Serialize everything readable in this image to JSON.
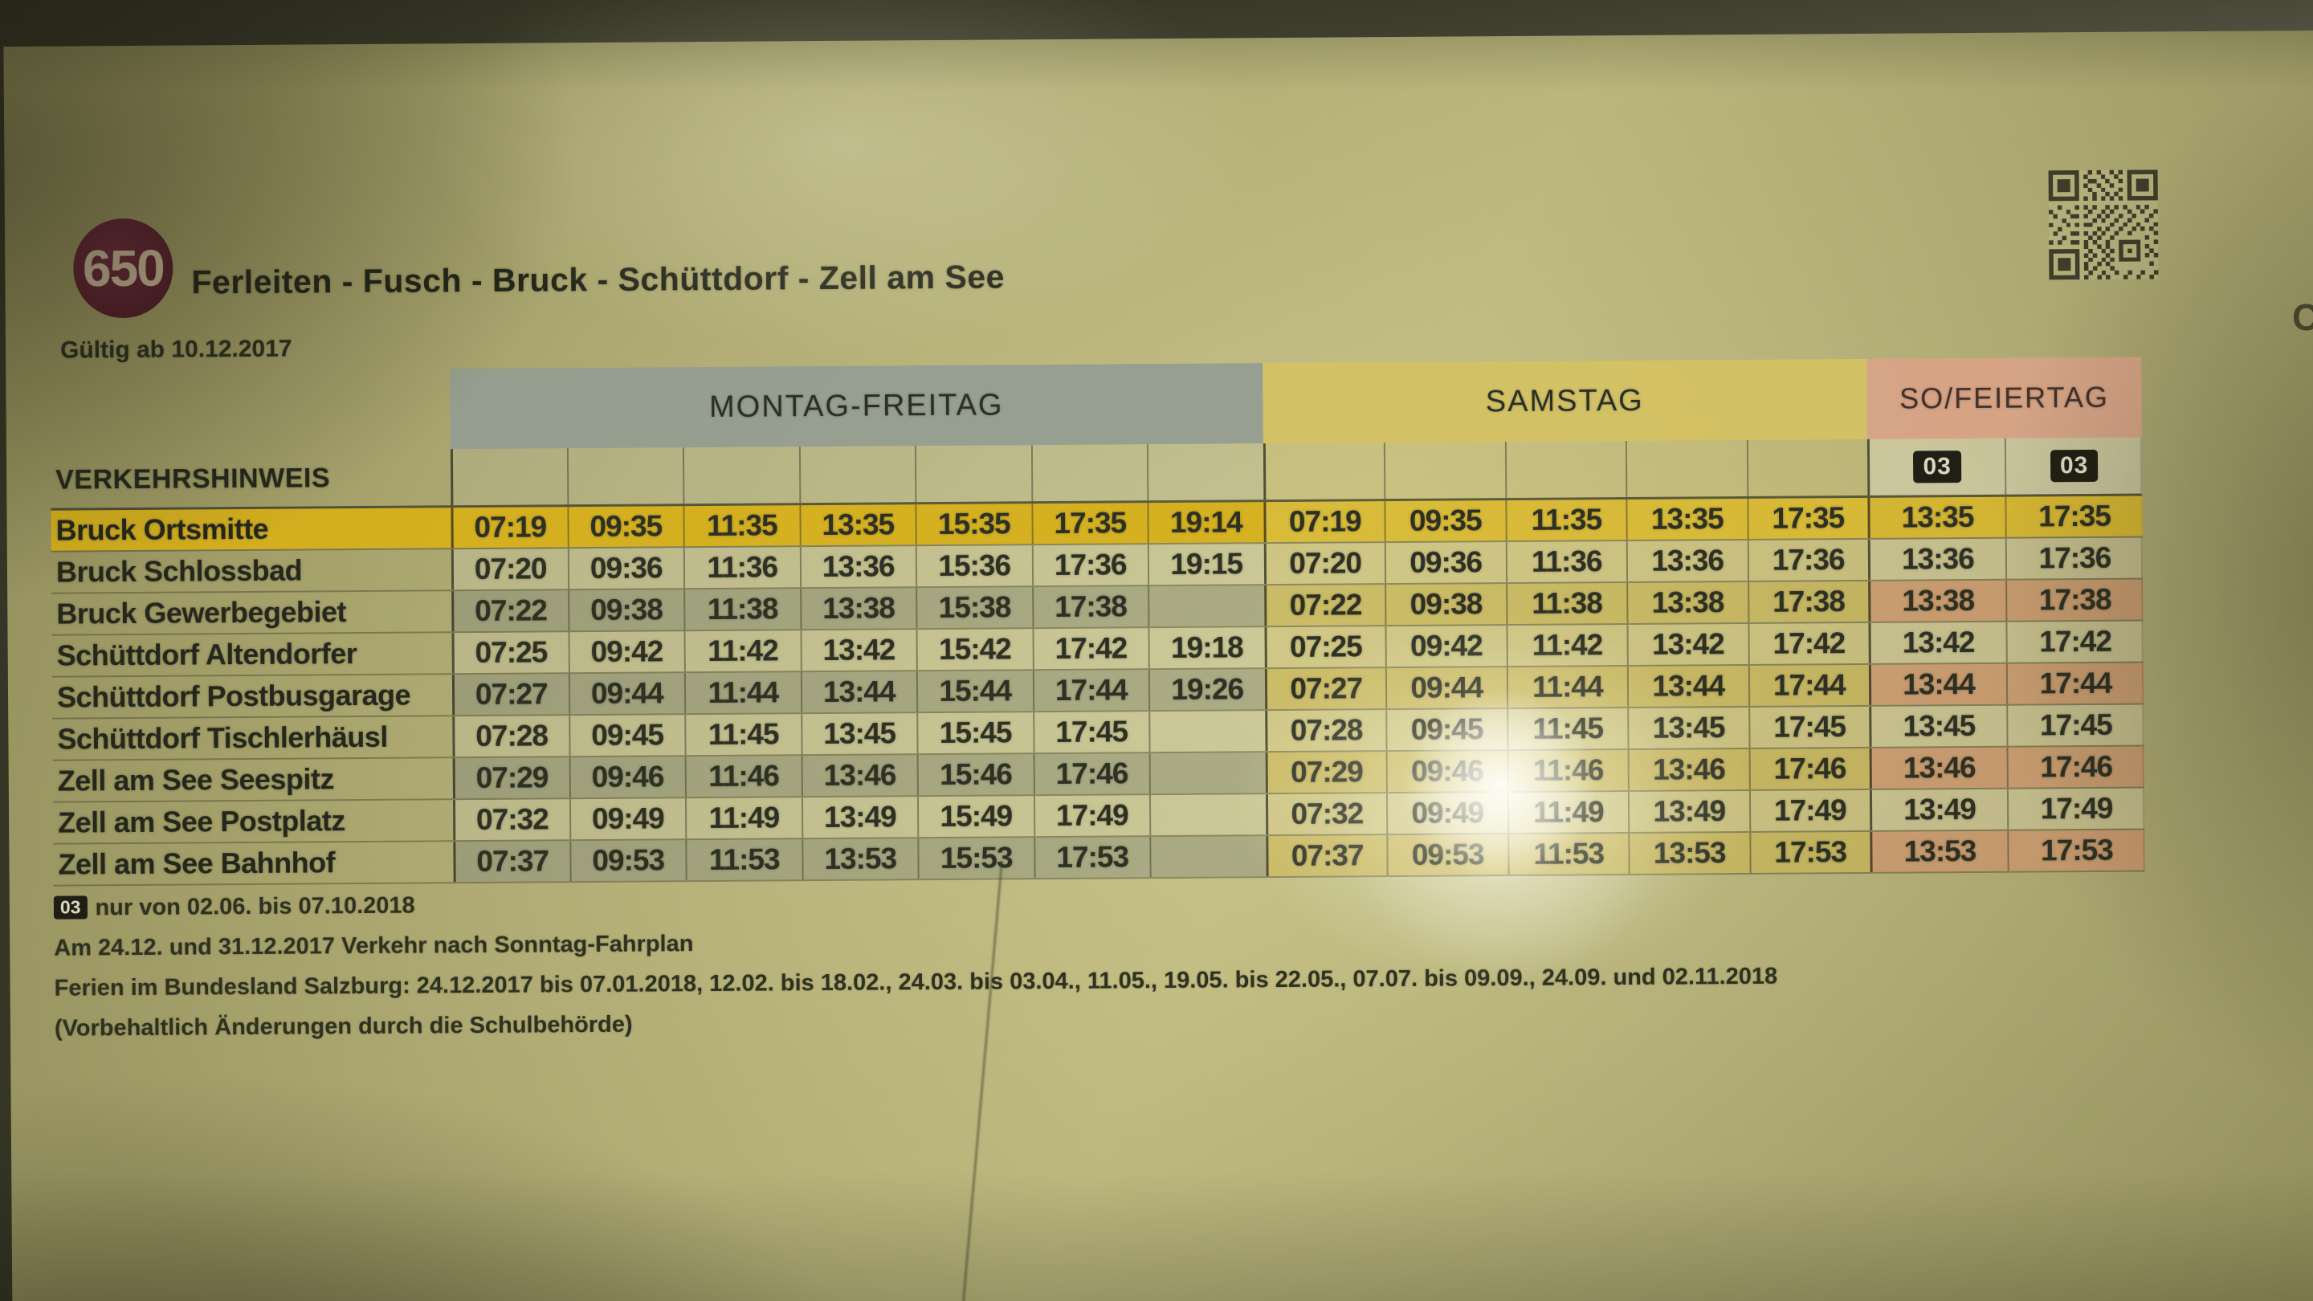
{
  "route": {
    "number": "650",
    "title": "Ferleiten - Fusch - Bruck - Schüttdorf - Zell am See",
    "valid_from": "Gültig ab 10.12.2017"
  },
  "header": {
    "day_groups": [
      {
        "label": "MONTAG-FREITAG",
        "columns": 7
      },
      {
        "label": "SAMSTAG",
        "columns": 5
      },
      {
        "label": "SO/FEIERTAG",
        "columns": 2
      }
    ],
    "note_row_label": "VERKEHRSHINWEIS",
    "so_footnotes": [
      "03",
      "03"
    ]
  },
  "table": {
    "rows": [
      {
        "station": "Bruck Ortsmitte",
        "highlight": true,
        "times": [
          "07:19",
          "09:35",
          "11:35",
          "13:35",
          "15:35",
          "17:35",
          "19:14",
          "07:19",
          "09:35",
          "11:35",
          "13:35",
          "17:35",
          "13:35",
          "17:35"
        ]
      },
      {
        "station": "Bruck Schlossbad",
        "highlight": false,
        "times": [
          "07:20",
          "09:36",
          "11:36",
          "13:36",
          "15:36",
          "17:36",
          "19:15",
          "07:20",
          "09:36",
          "11:36",
          "13:36",
          "17:36",
          "13:36",
          "17:36"
        ]
      },
      {
        "station": "Bruck Gewerbegebiet",
        "highlight": false,
        "times": [
          "07:22",
          "09:38",
          "11:38",
          "13:38",
          "15:38",
          "17:38",
          "",
          "07:22",
          "09:38",
          "11:38",
          "13:38",
          "17:38",
          "13:38",
          "17:38"
        ]
      },
      {
        "station": "Schüttdorf Altendorfer",
        "highlight": false,
        "times": [
          "07:25",
          "09:42",
          "11:42",
          "13:42",
          "15:42",
          "17:42",
          "19:18",
          "07:25",
          "09:42",
          "11:42",
          "13:42",
          "17:42",
          "13:42",
          "17:42"
        ]
      },
      {
        "station": "Schüttdorf Postbusgarage",
        "highlight": false,
        "times": [
          "07:27",
          "09:44",
          "11:44",
          "13:44",
          "15:44",
          "17:44",
          "19:26",
          "07:27",
          "09:44",
          "11:44",
          "13:44",
          "17:44",
          "13:44",
          "17:44"
        ]
      },
      {
        "station": "Schüttdorf Tischlerhäusl",
        "highlight": false,
        "times": [
          "07:28",
          "09:45",
          "11:45",
          "13:45",
          "15:45",
          "17:45",
          "",
          "07:28",
          "09:45",
          "11:45",
          "13:45",
          "17:45",
          "13:45",
          "17:45"
        ]
      },
      {
        "station": "Zell am See Seespitz",
        "highlight": false,
        "times": [
          "07:29",
          "09:46",
          "11:46",
          "13:46",
          "15:46",
          "17:46",
          "",
          "07:29",
          "09:46",
          "11:46",
          "13:46",
          "17:46",
          "13:46",
          "17:46"
        ]
      },
      {
        "station": "Zell am See Postplatz",
        "highlight": false,
        "times": [
          "07:32",
          "09:49",
          "11:49",
          "13:49",
          "15:49",
          "17:49",
          "",
          "07:32",
          "09:49",
          "11:49",
          "13:49",
          "17:49",
          "13:49",
          "17:49"
        ]
      },
      {
        "station": "Zell am See Bahnhof",
        "highlight": false,
        "times": [
          "07:37",
          "09:53",
          "11:53",
          "13:53",
          "15:53",
          "17:53",
          "",
          "07:37",
          "09:53",
          "11:53",
          "13:53",
          "17:53",
          "13:53",
          "17:53"
        ]
      }
    ]
  },
  "footnotes": {
    "legend_badge": "03",
    "legend_text": "nur von 02.06. bis 07.10.2018",
    "sunday_note": "Am 24.12. und 31.12.2017 Verkehr nach Sonntag-Fahrplan",
    "holiday_note": "Ferien im Bundesland Salzburg: 24.12.2017 bis 07.01.2018, 12.02. bis 18.02., 24.03. bis 03.04., 11.05., 19.05. bis 22.05., 07.07. bis 09.09., 24.09. und 02.11.2018",
    "school_note": "(Vorbehaltlich Änderungen durch die Schulbehörde)"
  },
  "artifacts": {
    "edge_fragment": "C"
  },
  "colors": {
    "band_weekday": "#949d91",
    "band_saturday": "#d5c262",
    "band_sunday": "#dba288",
    "highlight_row": "#d7b019",
    "route_badge": "#5e2531",
    "paper": "#a5a06a"
  }
}
